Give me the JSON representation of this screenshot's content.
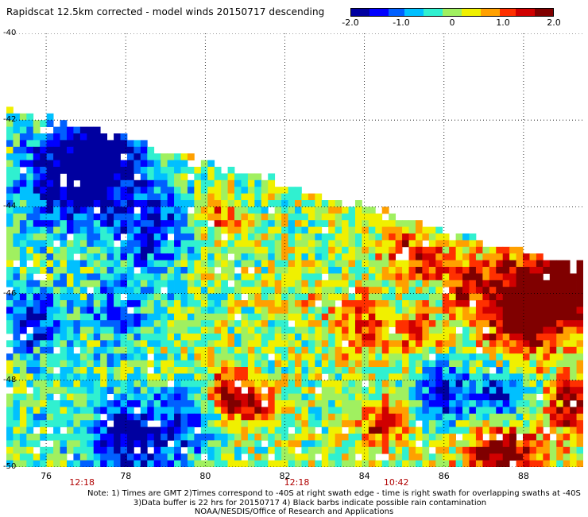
{
  "title": "Rapidscat 12.5km corrected - model winds 20150717 descending",
  "colorbar": {
    "min": -2.0,
    "max": 2.0,
    "ticks": [
      {
        "value": -2.0,
        "label": "-2.0"
      },
      {
        "value": -1.0,
        "label": "-1.0"
      },
      {
        "value": 0,
        "label": "0"
      },
      {
        "value": 1.0,
        "label": "1.0"
      },
      {
        "value": 2.0,
        "label": "2.0"
      }
    ],
    "colors": [
      "#0000a0",
      "#0000ff",
      "#0060ff",
      "#00c0ff",
      "#30f0d0",
      "#a0f060",
      "#f0f000",
      "#ffa000",
      "#ff3000",
      "#d00000",
      "#800000"
    ]
  },
  "map": {
    "lon_range": [
      75,
      89.5
    ],
    "lat_range": [
      -50,
      -40
    ],
    "lat_labels": [
      "-40",
      "-42",
      "-44",
      "-46",
      "-48",
      "-50"
    ],
    "lon_labels": [
      "76",
      "78",
      "80",
      "82",
      "84",
      "86",
      "88"
    ],
    "time_labels": [
      {
        "label": "12:18",
        "lon": 76.9
      },
      {
        "label": "12:18",
        "lon": 82.3
      },
      {
        "label": "10:42",
        "lon": 84.8
      }
    ],
    "grid": true,
    "grid_style": "dotted"
  },
  "notes": [
    "Note: 1) Times are GMT 2)Times correspond to -40S at right swath edge - time is right swath for overlapping swaths at -40S",
    "3)Data buffer is 22 hrs for 20150717 4) Black barbs indicate possible rain contamination",
    "NOAA/NESDIS/Office of Research and Applications"
  ]
}
